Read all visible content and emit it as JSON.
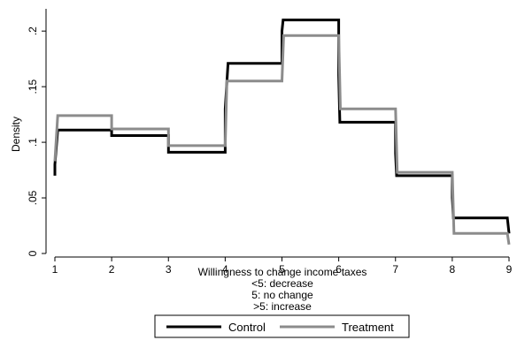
{
  "chart_data": {
    "type": "line",
    "step": true,
    "ylabel": "Density",
    "xlabel_lines": [
      "Willingness to change income taxes",
      "<5: decrease",
      "5: no change",
      ">5: increase"
    ],
    "xlim": [
      1,
      9
    ],
    "ylim": [
      0,
      0.22
    ],
    "x_ticks": [
      1,
      2,
      3,
      4,
      5,
      6,
      7,
      8,
      9
    ],
    "x_tick_labels": [
      "1",
      "2",
      "3",
      "4",
      "5",
      "6",
      "7",
      "8",
      "9"
    ],
    "y_ticks": [
      0,
      0.05,
      0.1,
      0.15,
      0.2
    ],
    "y_tick_labels": [
      "0",
      ".05",
      ".1",
      ".15",
      ".2"
    ],
    "grid": false,
    "legend_position": "bottom",
    "series": [
      {
        "name": "Control",
        "color": "#000000",
        "points": [
          [
            1,
            0.07
          ],
          [
            1,
            0.08
          ],
          [
            1.05,
            0.111
          ],
          [
            2,
            0.111
          ],
          [
            2,
            0.106
          ],
          [
            3,
            0.106
          ],
          [
            3,
            0.091
          ],
          [
            4,
            0.091
          ],
          [
            4,
            0.13
          ],
          [
            4.05,
            0.171
          ],
          [
            5,
            0.171
          ],
          [
            5,
            0.2
          ],
          [
            5.02,
            0.21
          ],
          [
            6,
            0.21
          ],
          [
            6,
            0.16
          ],
          [
            6.02,
            0.118
          ],
          [
            7,
            0.118
          ],
          [
            7,
            0.09
          ],
          [
            7.02,
            0.07
          ],
          [
            8,
            0.07
          ],
          [
            8,
            0.05
          ],
          [
            8.02,
            0.032
          ],
          [
            8.97,
            0.032
          ],
          [
            9,
            0.018
          ]
        ]
      },
      {
        "name": "Treatment",
        "color": "#8c8c8c",
        "points": [
          [
            1,
            0.083
          ],
          [
            1.05,
            0.124
          ],
          [
            2,
            0.124
          ],
          [
            2,
            0.112
          ],
          [
            3,
            0.112
          ],
          [
            3,
            0.097
          ],
          [
            4,
            0.097
          ],
          [
            4.03,
            0.155
          ],
          [
            5,
            0.155
          ],
          [
            5.03,
            0.196
          ],
          [
            6,
            0.196
          ],
          [
            6.03,
            0.13
          ],
          [
            7,
            0.13
          ],
          [
            7.03,
            0.073
          ],
          [
            8,
            0.073
          ],
          [
            8.03,
            0.018
          ],
          [
            8.97,
            0.018
          ],
          [
            9,
            0.008
          ]
        ]
      }
    ]
  }
}
